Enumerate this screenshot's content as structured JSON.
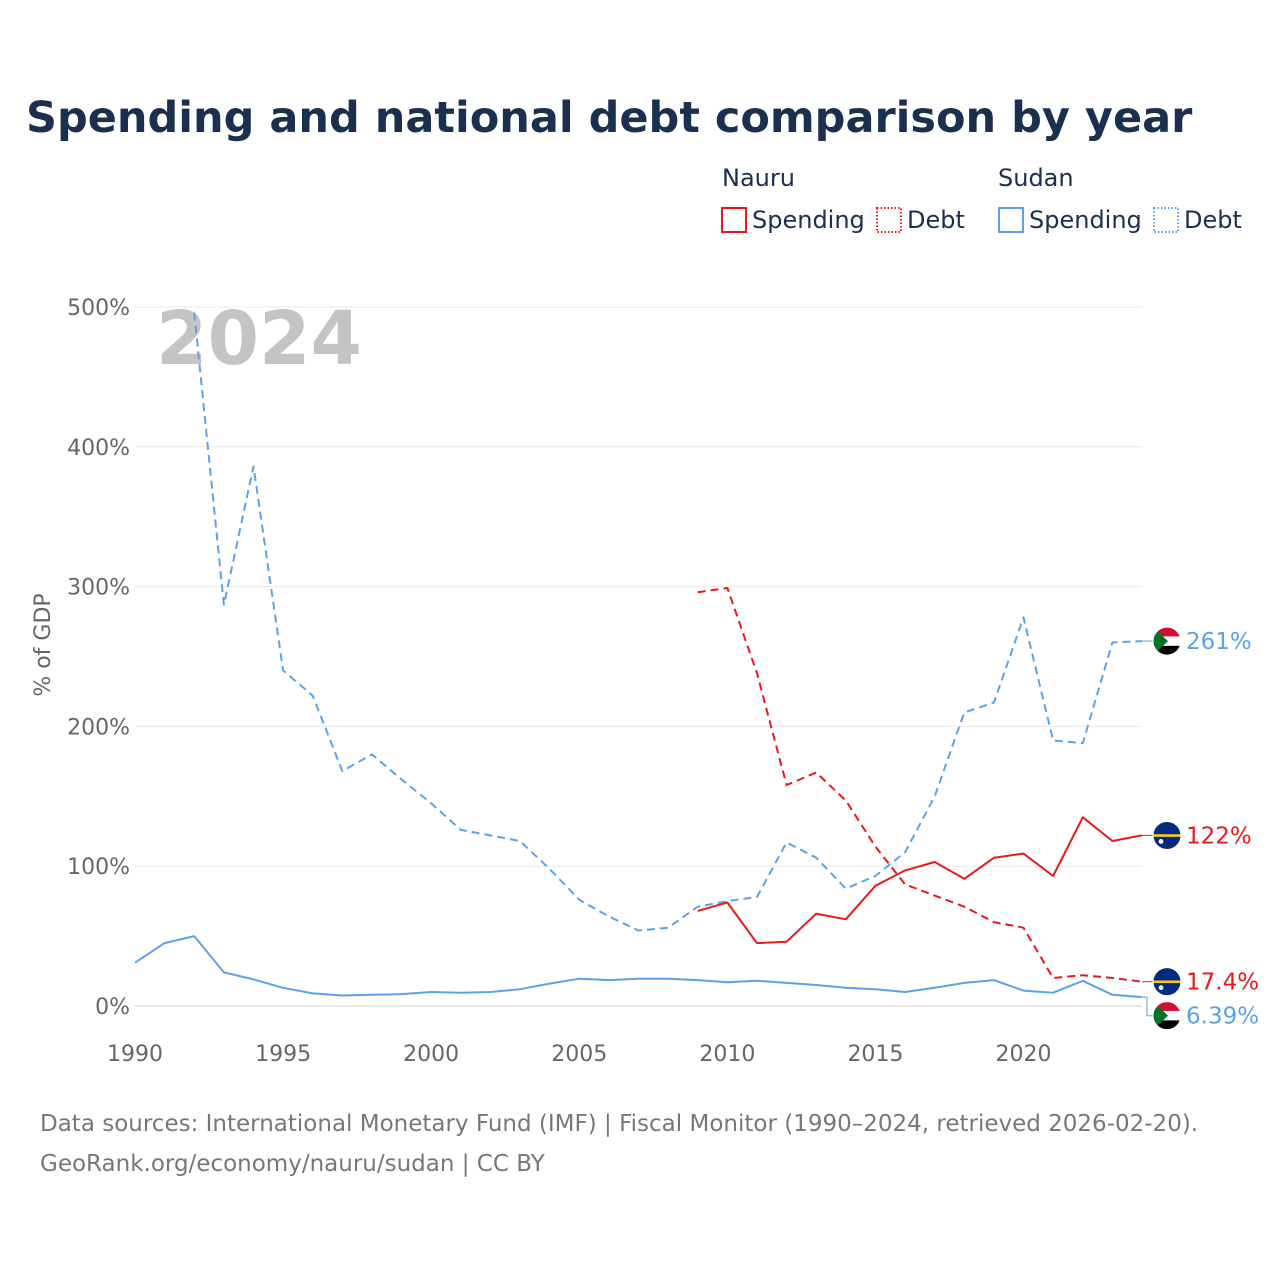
{
  "title": "Spending and national debt comparison by year",
  "year_watermark": "2024",
  "legend": {
    "groups": [
      {
        "name": "Nauru",
        "items": [
          {
            "label": "Spending",
            "color": "#e8191c",
            "style": "solid"
          },
          {
            "label": "Debt",
            "color": "#e8191c",
            "style": "dotted"
          }
        ]
      },
      {
        "name": "Sudan",
        "items": [
          {
            "label": "Spending",
            "color": "#5ba3e6",
            "style": "solid"
          },
          {
            "label": "Debt",
            "color": "#5ba3e6",
            "style": "dotted"
          }
        ]
      }
    ]
  },
  "source_lines": [
    "Data sources: International Monetary Fund (IMF) | Fiscal Monitor (1990–2024, retrieved 2026-02-20).",
    "GeoRank.org/economy/nauru/sudan | CC BY"
  ],
  "chart_data": {
    "type": "line",
    "title": "Spending and national debt comparison by year",
    "xlabel": "",
    "ylabel": "% of GDP",
    "xlim": [
      1990,
      2024
    ],
    "ylim": [
      0,
      500
    ],
    "x_ticks": [
      1990,
      1995,
      2000,
      2005,
      2010,
      2015,
      2020
    ],
    "y_ticks": [
      {
        "value": 0,
        "label": "0%"
      },
      {
        "value": 100,
        "label": "100%"
      },
      {
        "value": 200,
        "label": "200%"
      },
      {
        "value": 300,
        "label": "300%"
      },
      {
        "value": 400,
        "label": "400%"
      },
      {
        "value": 500,
        "label": "500%"
      }
    ],
    "grid": true,
    "series": [
      {
        "name": "Sudan Debt",
        "country": "Sudan",
        "metric": "Debt",
        "color": "#5ba3e6",
        "style": "dashed",
        "x": [
          1992,
          1993,
          1994,
          1995,
          1996,
          1997,
          1998,
          1999,
          2000,
          2001,
          2002,
          2003,
          2004,
          2005,
          2006,
          2007,
          2008,
          2009,
          2010,
          2011,
          2012,
          2013,
          2014,
          2015,
          2016,
          2017,
          2018,
          2019,
          2020,
          2021,
          2022,
          2023,
          2024
        ],
        "values": [
          496,
          287,
          386,
          240,
          222,
          168,
          180,
          162,
          145,
          126,
          122,
          118,
          98,
          76,
          64,
          54,
          56,
          71,
          75,
          78,
          117,
          106,
          84,
          93,
          110,
          150,
          210,
          217,
          278,
          190,
          188,
          260,
          261
        ],
        "end_label": "261%",
        "flag": "sudan"
      },
      {
        "name": "Nauru Spending",
        "country": "Nauru",
        "metric": "Spending",
        "color": "#e8191c",
        "style": "solid",
        "x": [
          2009,
          2010,
          2011,
          2012,
          2013,
          2014,
          2015,
          2016,
          2017,
          2018,
          2019,
          2020,
          2021,
          2022,
          2023,
          2024
        ],
        "values": [
          68,
          74,
          45,
          46,
          66,
          62,
          86,
          97,
          103,
          91,
          106,
          109,
          93,
          135,
          118,
          122
        ],
        "end_label": "122%",
        "flag": "nauru"
      },
      {
        "name": "Nauru Debt",
        "country": "Nauru",
        "metric": "Debt",
        "color": "#e8191c",
        "style": "dashed",
        "x": [
          2009,
          2010,
          2011,
          2012,
          2013,
          2014,
          2015,
          2016,
          2017,
          2018,
          2019,
          2020,
          2021,
          2022,
          2023,
          2024
        ],
        "values": [
          296,
          299,
          238,
          158,
          167,
          147,
          114,
          87,
          79,
          71,
          60,
          56,
          20,
          22,
          20,
          17.4
        ],
        "end_label": "17.4%",
        "flag": "nauru"
      },
      {
        "name": "Sudan Spending",
        "country": "Sudan",
        "metric": "Spending",
        "color": "#5ba3e6",
        "style": "solid",
        "x": [
          1990,
          1991,
          1992,
          1993,
          1994,
          1995,
          1996,
          1997,
          1998,
          1999,
          2000,
          2001,
          2002,
          2003,
          2004,
          2005,
          2006,
          2007,
          2008,
          2009,
          2010,
          2011,
          2012,
          2013,
          2014,
          2015,
          2016,
          2017,
          2018,
          2019,
          2020,
          2021,
          2022,
          2023,
          2024
        ],
        "values": [
          31,
          45,
          50,
          24,
          19,
          13,
          9,
          7.5,
          8,
          8.5,
          10,
          9.5,
          10,
          12,
          16,
          19.5,
          18.5,
          19.5,
          19.5,
          18.5,
          17,
          18,
          16.5,
          15,
          13,
          12,
          10,
          13,
          16.5,
          18.5,
          11,
          9.5,
          18,
          8,
          6.39
        ],
        "end_label": "6.39%",
        "flag": "sudan"
      }
    ]
  }
}
